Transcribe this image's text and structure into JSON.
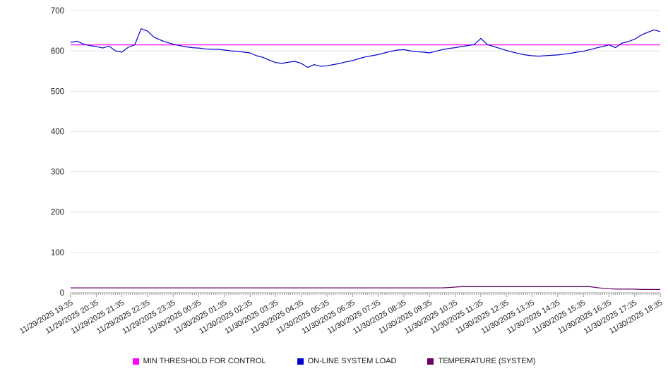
{
  "chart_data": {
    "type": "line",
    "title": "",
    "xlabel": "",
    "ylabel": "",
    "ylim": [
      0,
      700
    ],
    "y_ticks": [
      0,
      100,
      200,
      300,
      400,
      500,
      600,
      700
    ],
    "grid": true,
    "legend_position": "bottom",
    "x_tick_labels": [
      "11/29/2025 19:35",
      "11/29/2025 20:35",
      "11/29/2025 21:35",
      "11/29/2025 22:35",
      "11/29/2025 23:35",
      "11/30/2025 00:35",
      "11/30/2025 01:35",
      "11/30/2025 02:35",
      "11/30/2025 03:35",
      "11/30/2025 04:35",
      "11/30/2025 05:35",
      "11/30/2025 06:35",
      "11/30/2025 07:35",
      "11/30/2025 08:35",
      "11/30/2025 09:35",
      "11/30/2025 10:35",
      "11/30/2025 11:35",
      "11/30/2025 12:35",
      "11/30/2025 13:35",
      "11/30/2025 14:35",
      "11/30/2025 15:35",
      "11/30/2025 16:35",
      "11/30/2025 17:35",
      "11/30/2025 18:35"
    ],
    "series": [
      {
        "name": "MIN THRESHOLD FOR CONTROL",
        "color": "#ff00ff",
        "values": [
          615,
          615
        ]
      },
      {
        "name": "ON-LINE SYSTEM LOAD",
        "color": "#0000cd",
        "values": [
          621,
          624,
          617,
          613,
          611,
          607,
          612,
          600,
          597,
          609,
          615,
          655,
          649,
          634,
          627,
          621,
          617,
          613,
          610,
          608,
          607,
          605,
          604,
          604,
          602,
          600,
          599,
          597,
          595,
          588,
          584,
          577,
          571,
          569,
          572,
          574,
          569,
          559,
          566,
          562,
          563,
          566,
          569,
          573,
          576,
          581,
          585,
          588,
          591,
          595,
          599,
          602,
          603,
          600,
          598,
          597,
          595,
          599,
          603,
          606,
          608,
          611,
          613,
          616,
          631,
          616,
          611,
          606,
          601,
          597,
          593,
          590,
          588,
          587,
          588,
          589,
          590,
          592,
          594,
          597,
          599,
          603,
          607,
          611,
          615,
          608,
          619,
          623,
          629,
          639,
          646,
          652,
          648
        ]
      },
      {
        "name": "TEMPERATURE (SYSTEM)",
        "color": "#660066",
        "values": [
          12,
          12,
          12,
          12,
          12,
          12,
          12,
          12,
          12,
          12,
          12,
          12,
          12,
          12,
          12,
          12,
          12,
          12,
          12,
          12,
          12,
          12,
          12,
          12,
          12,
          12,
          12,
          12,
          12,
          12,
          12,
          12,
          12,
          12,
          12,
          12,
          12,
          12,
          12,
          12,
          12,
          12,
          12,
          12,
          12,
          12,
          12,
          12,
          12,
          12,
          12,
          12,
          12,
          12,
          12,
          12,
          12,
          12,
          12,
          13,
          14,
          15,
          15,
          15,
          15,
          15,
          15,
          15,
          15,
          15,
          15,
          15,
          15,
          15,
          15,
          15,
          15,
          15,
          15,
          15,
          15,
          15,
          13,
          11,
          10,
          9,
          9,
          9,
          9,
          8,
          8,
          8,
          8
        ]
      }
    ]
  }
}
